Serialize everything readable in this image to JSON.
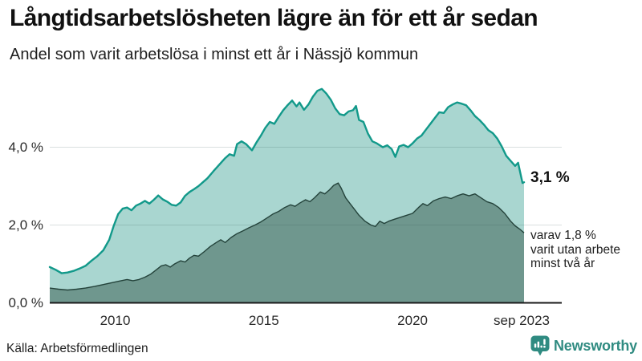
{
  "header": {
    "title": "Långtidsarbetslösheten lägre än för ett år sedan",
    "subtitle": "Andel som varit arbetslösa i minst ett år i Nässjö kommun"
  },
  "chart_data": {
    "type": "area",
    "title": "Långtidsarbetslösheten lägre än för ett år sedan",
    "subtitle": "Andel som varit arbetslösa i minst ett år i Nässjö kommun",
    "xlabel": "",
    "ylabel": "",
    "x_range": [
      2007.8,
      2023.75
    ],
    "ylim": [
      0,
      5.6
    ],
    "grid": "horizontal",
    "legend_position": "none",
    "y_ticks": [
      {
        "label": "0,0 %",
        "value": 0
      },
      {
        "label": "2,0 %",
        "value": 2
      },
      {
        "label": "4,0 %",
        "value": 4
      }
    ],
    "x_ticks": [
      {
        "label": "2010",
        "year": 2010
      },
      {
        "label": "2015",
        "year": 2015
      },
      {
        "label": "2020",
        "year": 2020
      },
      {
        "label": "sep 2023",
        "year": 2023.67
      }
    ],
    "series": [
      {
        "name": "minst ett år",
        "line_color": "#12998a",
        "fill_color": "#a9d6d0",
        "end_value": 3.1,
        "points": [
          [
            2007.8,
            0.92
          ],
          [
            2008.0,
            0.85
          ],
          [
            2008.2,
            0.76
          ],
          [
            2008.4,
            0.78
          ],
          [
            2008.6,
            0.82
          ],
          [
            2008.8,
            0.88
          ],
          [
            2009.0,
            0.95
          ],
          [
            2009.2,
            1.08
          ],
          [
            2009.4,
            1.2
          ],
          [
            2009.6,
            1.35
          ],
          [
            2009.8,
            1.62
          ],
          [
            2009.95,
            1.98
          ],
          [
            2010.1,
            2.28
          ],
          [
            2010.25,
            2.42
          ],
          [
            2010.4,
            2.45
          ],
          [
            2010.55,
            2.38
          ],
          [
            2010.7,
            2.5
          ],
          [
            2010.85,
            2.55
          ],
          [
            2011.0,
            2.62
          ],
          [
            2011.15,
            2.55
          ],
          [
            2011.3,
            2.65
          ],
          [
            2011.45,
            2.76
          ],
          [
            2011.6,
            2.66
          ],
          [
            2011.75,
            2.6
          ],
          [
            2011.9,
            2.52
          ],
          [
            2012.05,
            2.5
          ],
          [
            2012.2,
            2.58
          ],
          [
            2012.35,
            2.75
          ],
          [
            2012.5,
            2.85
          ],
          [
            2012.65,
            2.92
          ],
          [
            2012.8,
            3.0
          ],
          [
            2012.95,
            3.1
          ],
          [
            2013.1,
            3.2
          ],
          [
            2013.3,
            3.38
          ],
          [
            2013.5,
            3.55
          ],
          [
            2013.7,
            3.72
          ],
          [
            2013.85,
            3.82
          ],
          [
            2014.0,
            3.78
          ],
          [
            2014.1,
            4.08
          ],
          [
            2014.25,
            4.15
          ],
          [
            2014.4,
            4.08
          ],
          [
            2014.6,
            3.92
          ],
          [
            2014.75,
            4.12
          ],
          [
            2014.9,
            4.3
          ],
          [
            2015.05,
            4.5
          ],
          [
            2015.2,
            4.65
          ],
          [
            2015.35,
            4.6
          ],
          [
            2015.5,
            4.78
          ],
          [
            2015.65,
            4.95
          ],
          [
            2015.8,
            5.08
          ],
          [
            2015.95,
            5.2
          ],
          [
            2016.1,
            5.05
          ],
          [
            2016.2,
            5.15
          ],
          [
            2016.35,
            4.96
          ],
          [
            2016.5,
            5.1
          ],
          [
            2016.65,
            5.3
          ],
          [
            2016.8,
            5.45
          ],
          [
            2016.95,
            5.5
          ],
          [
            2017.1,
            5.38
          ],
          [
            2017.25,
            5.22
          ],
          [
            2017.4,
            5.0
          ],
          [
            2017.55,
            4.85
          ],
          [
            2017.7,
            4.82
          ],
          [
            2017.85,
            4.92
          ],
          [
            2018.0,
            4.95
          ],
          [
            2018.1,
            5.06
          ],
          [
            2018.2,
            4.7
          ],
          [
            2018.35,
            4.65
          ],
          [
            2018.5,
            4.35
          ],
          [
            2018.65,
            4.15
          ],
          [
            2018.8,
            4.1
          ],
          [
            2019.0,
            4.0
          ],
          [
            2019.15,
            4.05
          ],
          [
            2019.3,
            3.95
          ],
          [
            2019.42,
            3.75
          ],
          [
            2019.55,
            4.02
          ],
          [
            2019.7,
            4.06
          ],
          [
            2019.85,
            4.0
          ],
          [
            2020.0,
            4.1
          ],
          [
            2020.15,
            4.22
          ],
          [
            2020.3,
            4.3
          ],
          [
            2020.45,
            4.45
          ],
          [
            2020.6,
            4.6
          ],
          [
            2020.75,
            4.75
          ],
          [
            2020.9,
            4.9
          ],
          [
            2021.05,
            4.88
          ],
          [
            2021.2,
            5.03
          ],
          [
            2021.35,
            5.1
          ],
          [
            2021.5,
            5.15
          ],
          [
            2021.65,
            5.12
          ],
          [
            2021.8,
            5.08
          ],
          [
            2021.95,
            4.95
          ],
          [
            2022.1,
            4.8
          ],
          [
            2022.25,
            4.7
          ],
          [
            2022.4,
            4.58
          ],
          [
            2022.55,
            4.44
          ],
          [
            2022.7,
            4.36
          ],
          [
            2022.85,
            4.22
          ],
          [
            2023.0,
            4.02
          ],
          [
            2023.15,
            3.78
          ],
          [
            2023.3,
            3.65
          ],
          [
            2023.45,
            3.52
          ],
          [
            2023.55,
            3.6
          ],
          [
            2023.65,
            3.25
          ],
          [
            2023.7,
            3.08
          ],
          [
            2023.75,
            3.1
          ]
        ]
      },
      {
        "name": "minst två år",
        "line_color": "#24433b",
        "fill_color": "#6f978e",
        "end_value": 1.8,
        "points": [
          [
            2007.8,
            0.38
          ],
          [
            2008.1,
            0.35
          ],
          [
            2008.4,
            0.33
          ],
          [
            2008.7,
            0.35
          ],
          [
            2009.0,
            0.38
          ],
          [
            2009.3,
            0.42
          ],
          [
            2009.6,
            0.47
          ],
          [
            2009.9,
            0.52
          ],
          [
            2010.15,
            0.56
          ],
          [
            2010.4,
            0.6
          ],
          [
            2010.6,
            0.57
          ],
          [
            2010.8,
            0.6
          ],
          [
            2011.0,
            0.66
          ],
          [
            2011.2,
            0.74
          ],
          [
            2011.4,
            0.86
          ],
          [
            2011.55,
            0.95
          ],
          [
            2011.7,
            0.98
          ],
          [
            2011.85,
            0.92
          ],
          [
            2012.0,
            1.0
          ],
          [
            2012.2,
            1.08
          ],
          [
            2012.35,
            1.05
          ],
          [
            2012.5,
            1.15
          ],
          [
            2012.65,
            1.22
          ],
          [
            2012.8,
            1.2
          ],
          [
            2013.0,
            1.32
          ],
          [
            2013.2,
            1.45
          ],
          [
            2013.4,
            1.55
          ],
          [
            2013.55,
            1.62
          ],
          [
            2013.7,
            1.55
          ],
          [
            2013.9,
            1.68
          ],
          [
            2014.1,
            1.78
          ],
          [
            2014.3,
            1.85
          ],
          [
            2014.5,
            1.93
          ],
          [
            2014.7,
            2.0
          ],
          [
            2014.9,
            2.08
          ],
          [
            2015.1,
            2.18
          ],
          [
            2015.3,
            2.28
          ],
          [
            2015.5,
            2.35
          ],
          [
            2015.7,
            2.45
          ],
          [
            2015.9,
            2.52
          ],
          [
            2016.05,
            2.48
          ],
          [
            2016.2,
            2.56
          ],
          [
            2016.4,
            2.65
          ],
          [
            2016.55,
            2.6
          ],
          [
            2016.7,
            2.7
          ],
          [
            2016.9,
            2.85
          ],
          [
            2017.05,
            2.8
          ],
          [
            2017.2,
            2.9
          ],
          [
            2017.35,
            3.02
          ],
          [
            2017.5,
            3.08
          ],
          [
            2017.6,
            2.95
          ],
          [
            2017.75,
            2.7
          ],
          [
            2017.9,
            2.55
          ],
          [
            2018.05,
            2.4
          ],
          [
            2018.2,
            2.25
          ],
          [
            2018.4,
            2.1
          ],
          [
            2018.6,
            2.0
          ],
          [
            2018.75,
            1.96
          ],
          [
            2018.9,
            2.1
          ],
          [
            2019.05,
            2.04
          ],
          [
            2019.2,
            2.1
          ],
          [
            2019.4,
            2.15
          ],
          [
            2019.6,
            2.2
          ],
          [
            2019.8,
            2.25
          ],
          [
            2020.0,
            2.3
          ],
          [
            2020.2,
            2.45
          ],
          [
            2020.35,
            2.55
          ],
          [
            2020.5,
            2.5
          ],
          [
            2020.7,
            2.62
          ],
          [
            2020.9,
            2.68
          ],
          [
            2021.1,
            2.72
          ],
          [
            2021.3,
            2.68
          ],
          [
            2021.5,
            2.75
          ],
          [
            2021.7,
            2.8
          ],
          [
            2021.9,
            2.75
          ],
          [
            2022.1,
            2.8
          ],
          [
            2022.3,
            2.7
          ],
          [
            2022.5,
            2.6
          ],
          [
            2022.7,
            2.55
          ],
          [
            2022.9,
            2.45
          ],
          [
            2023.1,
            2.3
          ],
          [
            2023.3,
            2.1
          ],
          [
            2023.45,
            1.98
          ],
          [
            2023.6,
            1.9
          ],
          [
            2023.75,
            1.8
          ]
        ]
      }
    ],
    "annotations": {
      "value_label": "3,1 %",
      "note_lines": [
        "varav 1,8 %",
        "varit utan arbete",
        "minst två år"
      ]
    }
  },
  "footer": {
    "source": "Källa: Arbetsförmedlingen",
    "brand": "Newsworthy"
  },
  "colors": {
    "line_one_year": "#12998a",
    "fill_one_year": "#a9d6d0",
    "line_two_years": "#24433b",
    "fill_two_years": "#6f978e",
    "axis": "#1a1a1a",
    "gridline": "#d9dde0",
    "brand_teal": "#2f8b81"
  }
}
